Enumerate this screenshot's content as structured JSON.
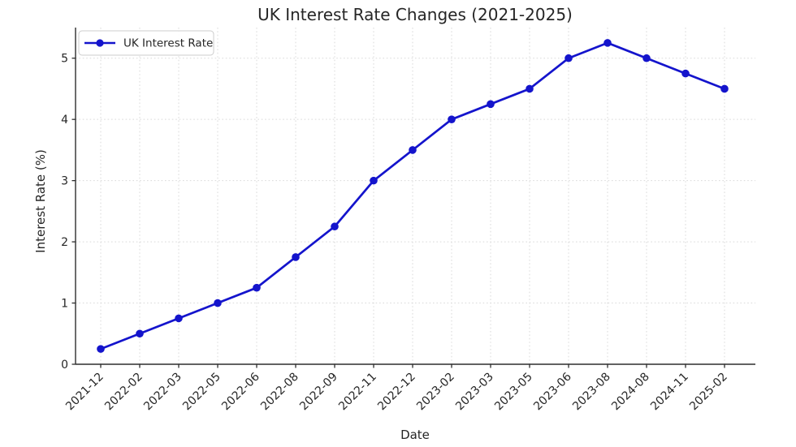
{
  "title": "UK Interest Rate Changes (2021-2025)",
  "chart_data": {
    "type": "line",
    "title": "UK Interest Rate Changes (2021-2025)",
    "xlabel": "Date",
    "ylabel": "Interest Rate (%)",
    "categories": [
      "2021-12",
      "2022-02",
      "2022-03",
      "2022-05",
      "2022-06",
      "2022-08",
      "2022-09",
      "2022-11",
      "2022-12",
      "2023-02",
      "2023-03",
      "2023-05",
      "2023-06",
      "2023-08",
      "2024-08",
      "2024-11",
      "2025-02"
    ],
    "series": [
      {
        "name": "UK Interest Rate",
        "values": [
          0.25,
          0.5,
          0.75,
          1.0,
          1.25,
          1.75,
          2.25,
          3.0,
          3.5,
          4.0,
          4.25,
          4.5,
          5.0,
          5.25,
          5.0,
          4.75,
          4.5
        ],
        "color": "#1414cc",
        "marker": "circle"
      }
    ],
    "yticks": [
      0,
      1,
      2,
      3,
      4,
      5
    ],
    "ylim": [
      0,
      5.5
    ],
    "grid": true,
    "grid_style": "dashed",
    "x_tick_rotation": 45,
    "legend_position": "upper-left"
  },
  "colors": {
    "line": "#1414cc",
    "grid": "#d9d9d9",
    "text": "#262626",
    "axis": "#2e2e2e",
    "legend_border": "#cccccc",
    "background": "#ffffff"
  }
}
